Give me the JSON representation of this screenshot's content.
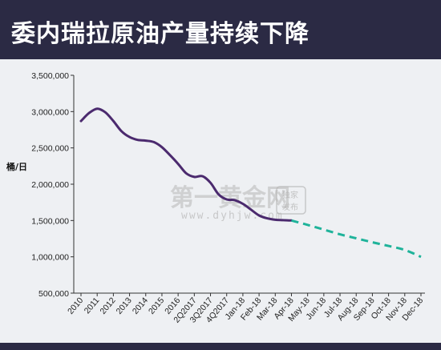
{
  "title": "委内瑞拉原油产量持续下降",
  "watermark": {
    "main": "第一黄金网",
    "url": "www.dyhjw.com",
    "badge_line1": "独家",
    "badge_line2": "发布"
  },
  "colors": {
    "header_bg": "#2b2a44",
    "panel_bg": "#eef0f3",
    "actual_line": "#4b2a6e",
    "forecast_line": "#1fb39a"
  },
  "chart_data": {
    "type": "line",
    "ylabel": "桶/日",
    "xlabel": "",
    "ylim": [
      500000,
      3500000
    ],
    "yticks": [
      500000,
      1000000,
      1500000,
      2000000,
      2500000,
      3000000,
      3500000
    ],
    "ytick_labels": [
      "500,000",
      "1,000,000",
      "1,500,000",
      "2,000,000",
      "2,500,000",
      "3,000,000",
      "3,500,000"
    ],
    "categories": [
      "2010",
      "2011",
      "2012",
      "2013",
      "2014",
      "2015",
      "2016",
      "2Q2017",
      "3Q2017",
      "4Q2017",
      "Jan-18",
      "Feb-18",
      "Mar-18",
      "Apr-18",
      "May-18",
      "Jun-18",
      "Jul-18",
      "Aug-18",
      "Sep-18",
      "Oct-18",
      "Nov-18",
      "Dec-18"
    ],
    "grid": false,
    "series": [
      {
        "style": "solid",
        "points": [
          [
            0,
            2870000
          ],
          [
            0.5,
            2980000
          ],
          [
            1,
            3040000
          ],
          [
            1.5,
            2990000
          ],
          [
            2,
            2870000
          ],
          [
            2.5,
            2730000
          ],
          [
            3,
            2650000
          ],
          [
            3.5,
            2610000
          ],
          [
            4,
            2600000
          ],
          [
            4.5,
            2580000
          ],
          [
            5,
            2510000
          ],
          [
            5.5,
            2400000
          ],
          [
            6,
            2280000
          ],
          [
            6.5,
            2150000
          ],
          [
            7,
            2100000
          ],
          [
            7.5,
            2110000
          ],
          [
            8,
            2020000
          ],
          [
            8.5,
            1860000
          ],
          [
            9,
            1790000
          ],
          [
            9.5,
            1780000
          ],
          [
            10,
            1730000
          ],
          [
            10.5,
            1650000
          ],
          [
            11,
            1570000
          ],
          [
            11.5,
            1530000
          ],
          [
            12,
            1510000
          ],
          [
            12.5,
            1505000
          ],
          [
            13,
            1500000
          ]
        ]
      },
      {
        "style": "dashed",
        "points": [
          [
            13,
            1500000
          ],
          [
            14,
            1440000
          ],
          [
            15,
            1375000
          ],
          [
            16,
            1310000
          ],
          [
            17,
            1255000
          ],
          [
            18,
            1200000
          ],
          [
            19,
            1150000
          ],
          [
            20,
            1095000
          ],
          [
            21,
            1000000
          ]
        ]
      }
    ]
  }
}
